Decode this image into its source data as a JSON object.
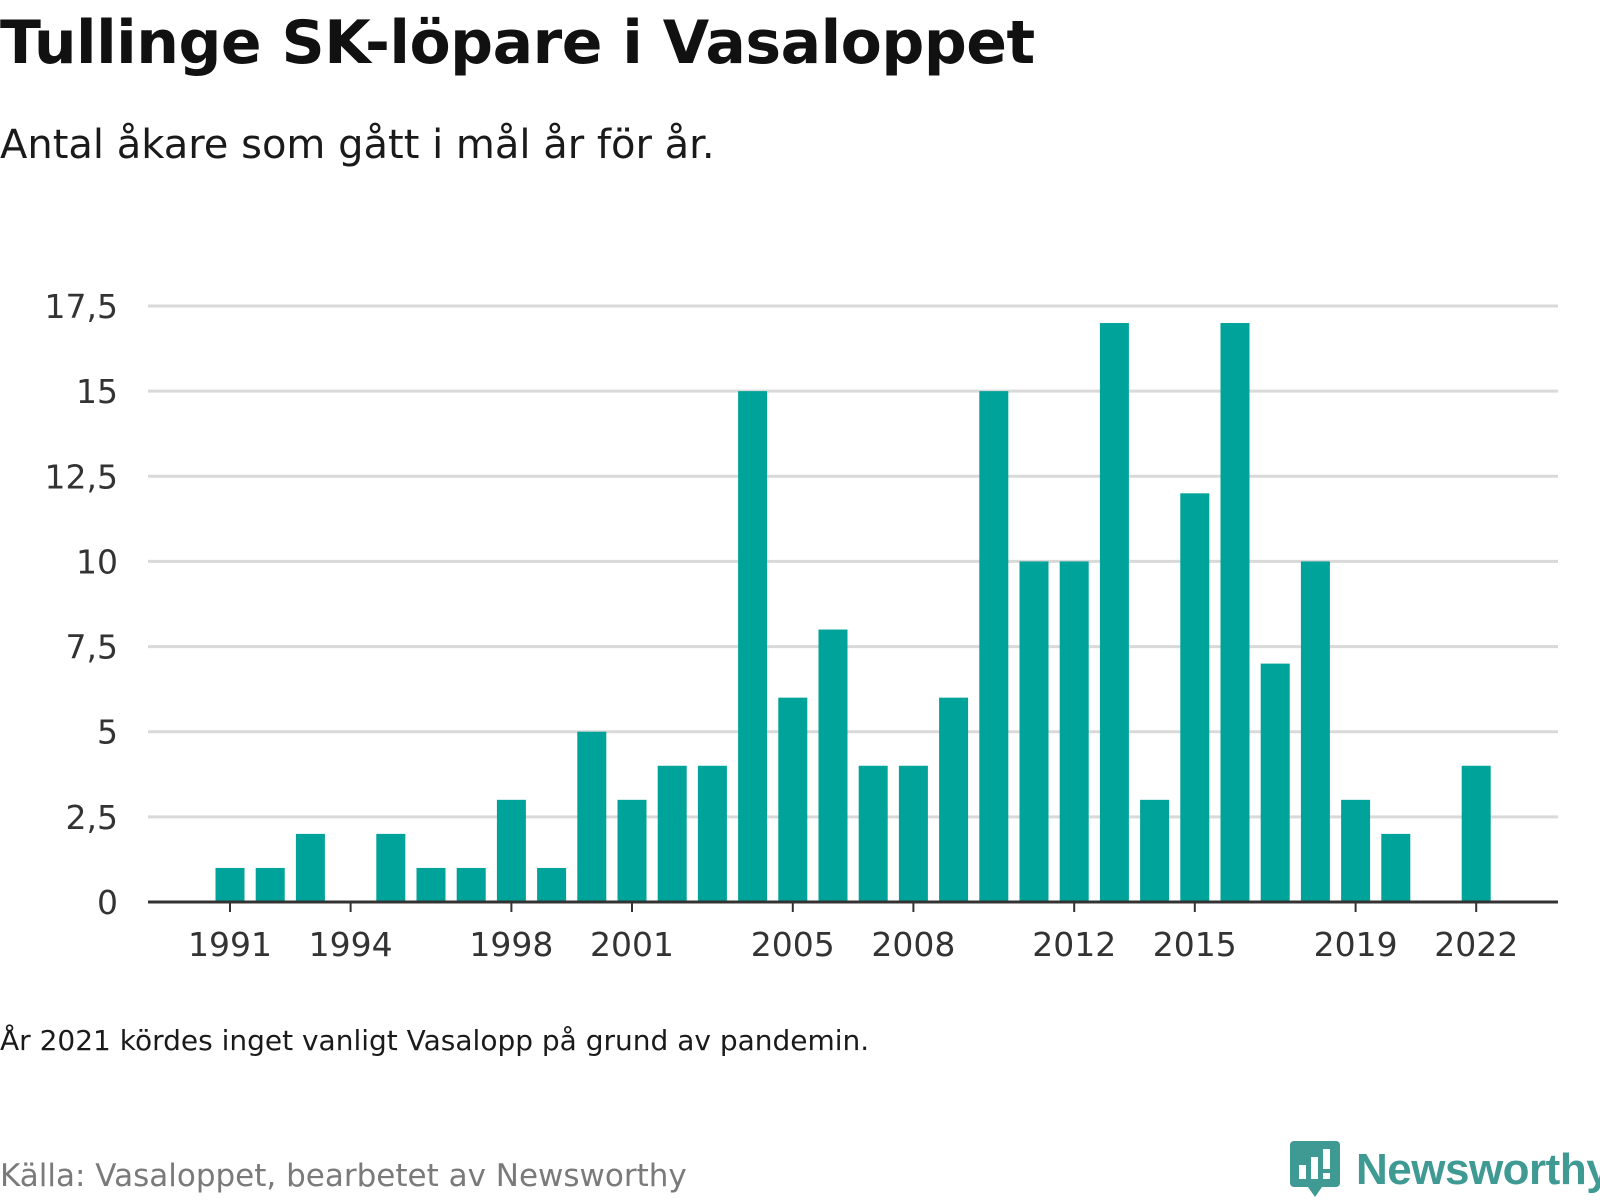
{
  "title": "Tullinge SK-löpare i Vasaloppet",
  "subtitle": "Antal åkare som gått i mål år för år.",
  "note": "År 2021 kördes inget vanligt Vasalopp på grund av pandemin.",
  "source": "Källa: Vasaloppet, bearbetet av Newsworthy",
  "brand": "Newsworthy",
  "colors": {
    "bar": "#00a399",
    "grid": "#d9d9d9",
    "axis": "#333333",
    "brand": "#3e9a92"
  },
  "chart_data": {
    "type": "bar",
    "categories": [
      "1991",
      "1992",
      "1993",
      "1994",
      "1995",
      "1996",
      "1997",
      "1998",
      "1999",
      "2000",
      "2001",
      "2002",
      "2003",
      "2004",
      "2005",
      "2006",
      "2007",
      "2008",
      "2009",
      "2010",
      "2011",
      "2012",
      "2013",
      "2014",
      "2015",
      "2016",
      "2017",
      "2018",
      "2019",
      "2020",
      "2021",
      "2022"
    ],
    "values": [
      1,
      1,
      2,
      0,
      2,
      1,
      1,
      3,
      1,
      5,
      3,
      4,
      4,
      15,
      6,
      8,
      4,
      4,
      6,
      15,
      10,
      10,
      17,
      3,
      12,
      17,
      7,
      10,
      3,
      2,
      0,
      4
    ],
    "x_tick_labels": [
      "1991",
      "1994",
      "1998",
      "2001",
      "2005",
      "2008",
      "2012",
      "2015",
      "2019",
      "2022"
    ],
    "y_ticks": [
      0,
      2.5,
      5,
      7.5,
      10,
      12.5,
      15,
      17.5
    ],
    "y_tick_labels": [
      "0",
      "2,5",
      "5",
      "7,5",
      "10",
      "12,5",
      "15",
      "17,5"
    ],
    "ylim": [
      0,
      17.5
    ],
    "xlabel": "",
    "ylabel": "",
    "grid": true
  }
}
